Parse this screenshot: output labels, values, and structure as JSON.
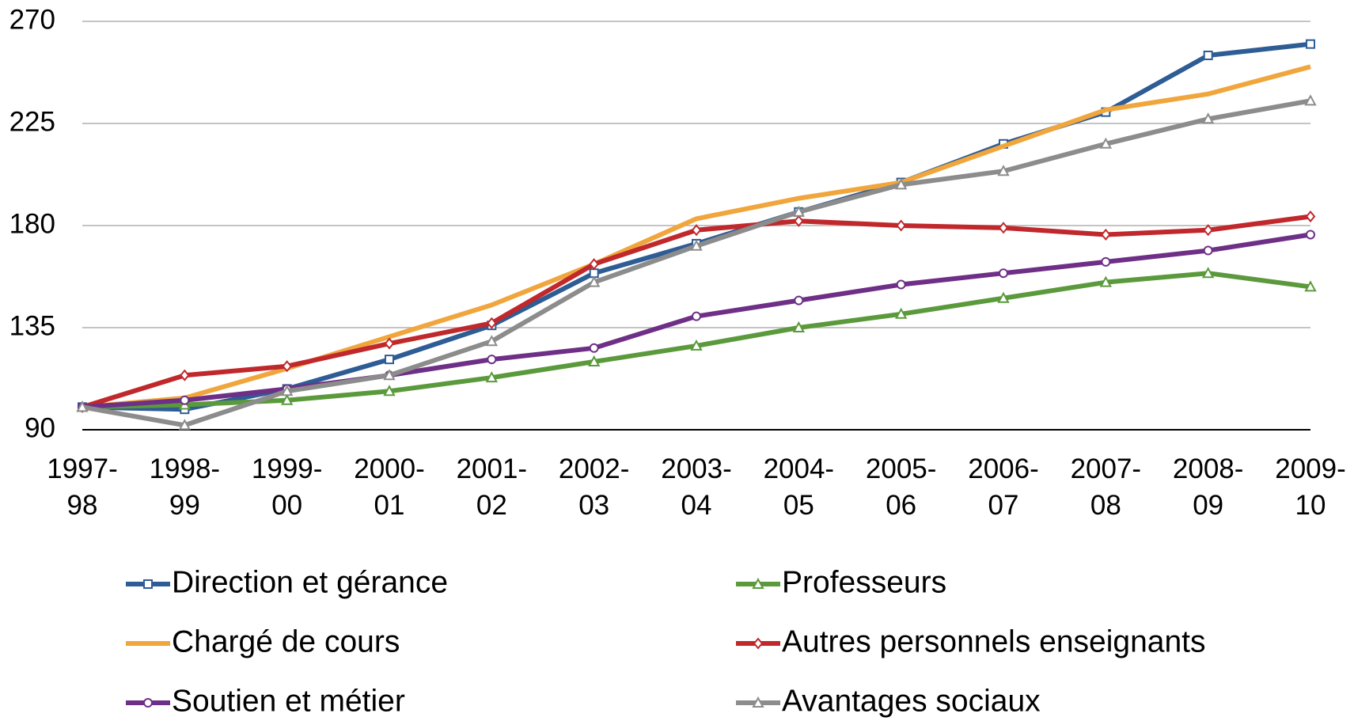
{
  "chart_data": {
    "type": "line",
    "categories": [
      "1997-98",
      "1998-99",
      "1999-00",
      "2000-01",
      "2001-02",
      "2002-03",
      "2003-04",
      "2004-05",
      "2005-06",
      "2006-07",
      "2007-08",
      "2008-09",
      "2009-10"
    ],
    "ylim": [
      90,
      270
    ],
    "yticks": [
      90,
      135,
      180,
      225,
      270
    ],
    "grid": true,
    "series": [
      {
        "name": "Direction et gérance",
        "color": "#2e5c94",
        "marker": "square",
        "values": [
          100,
          99,
          108,
          121,
          136,
          159,
          172,
          186,
          199,
          216,
          230,
          255,
          260
        ]
      },
      {
        "name": "Professeurs",
        "color": "#5b9a3c",
        "marker": "triangle",
        "values": [
          100,
          101,
          103,
          107,
          113,
          120,
          127,
          135,
          141,
          148,
          155,
          159,
          153
        ]
      },
      {
        "name": "Chargé de cours",
        "color": "#f0a63c",
        "marker": "none",
        "values": [
          100,
          104,
          117,
          131,
          145,
          163,
          183,
          192,
          199,
          215,
          231,
          238,
          250
        ]
      },
      {
        "name": "Autres personnels enseignants",
        "color": "#c0282c",
        "marker": "diamond",
        "values": [
          100,
          114,
          118,
          128,
          137,
          163,
          178,
          182,
          180,
          179,
          176,
          178,
          184
        ]
      },
      {
        "name": "Soutien et métier",
        "color": "#6e2f86",
        "marker": "circle",
        "values": [
          100,
          103,
          108,
          114,
          121,
          126,
          140,
          147,
          154,
          159,
          164,
          169,
          176
        ]
      },
      {
        "name": "Avantages sociaux",
        "color": "#8c8c8c",
        "marker": "triangle",
        "values": [
          100,
          92,
          107,
          114,
          129,
          155,
          171,
          186,
          198,
          204,
          216,
          227,
          235
        ]
      }
    ]
  }
}
